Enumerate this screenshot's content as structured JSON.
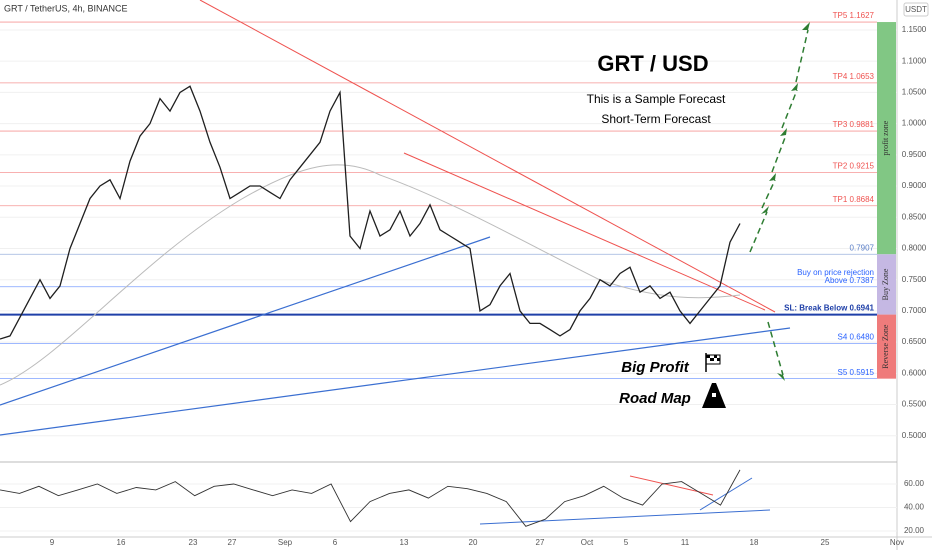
{
  "header": {
    "symbol": "GRT / TetherUS, 4h, BINANCE",
    "currency": "USDT"
  },
  "chart_data": {
    "type": "line",
    "title": "GRT / USD",
    "subtitle": [
      "This is a Sample Forecast",
      "Short-Term Forecast"
    ],
    "annotations": [
      "Big Profit",
      "Road Map"
    ],
    "color": "#1f1f1f",
    "values": [
      0.655,
      0.66,
      0.69,
      0.72,
      0.75,
      0.72,
      0.74,
      0.8,
      0.84,
      0.88,
      0.9,
      0.91,
      0.88,
      0.94,
      0.98,
      1.0,
      1.04,
      1.02,
      1.05,
      1.06,
      1.02,
      0.97,
      0.93,
      0.88,
      0.89,
      0.9,
      0.9,
      0.89,
      0.88,
      0.91,
      0.93,
      0.95,
      0.97,
      1.02,
      1.05,
      0.82,
      0.8,
      0.86,
      0.82,
      0.83,
      0.86,
      0.82,
      0.84,
      0.87,
      0.83,
      0.82,
      0.81,
      0.8,
      0.7,
      0.71,
      0.74,
      0.76,
      0.7,
      0.68,
      0.68,
      0.67,
      0.66,
      0.67,
      0.7,
      0.72,
      0.75,
      0.74,
      0.76,
      0.77,
      0.73,
      0.74,
      0.72,
      0.73,
      0.7,
      0.68,
      0.7,
      0.72,
      0.74,
      0.81,
      0.84
    ],
    "ylim": [
      0.458,
      1.198
    ],
    "yticks": [
      {
        "value": 0.5,
        "label": "0.5000"
      },
      {
        "value": 0.55,
        "label": "0.5500"
      },
      {
        "value": 0.6,
        "label": "0.6000"
      },
      {
        "value": 0.65,
        "label": "0.6500"
      },
      {
        "value": 0.7,
        "label": "0.7000"
      },
      {
        "value": 0.75,
        "label": "0.7500"
      },
      {
        "value": 0.8,
        "label": "0.8000"
      },
      {
        "value": 0.85,
        "label": "0.8500"
      },
      {
        "value": 0.9,
        "label": "0.9000"
      },
      {
        "value": 0.95,
        "label": "0.9500"
      },
      {
        "value": 1.0,
        "label": "1.0000"
      },
      {
        "value": 1.05,
        "label": "1.0500"
      },
      {
        "value": 1.1,
        "label": "1.1000"
      },
      {
        "value": 1.15,
        "label": "1.1500"
      }
    ],
    "levels": [
      {
        "label": "TP5 1.1627",
        "value": 1.1627,
        "color": "#ef5350"
      },
      {
        "label": "TP4 1.0653",
        "value": 1.0653,
        "color": "#ef5350"
      },
      {
        "label": "TP3 0.9881",
        "value": 0.9881,
        "color": "#ef5350"
      },
      {
        "label": "TP2 0.9215",
        "value": 0.9215,
        "color": "#ef5350"
      },
      {
        "label": "TP1 0.8684",
        "value": 0.8684,
        "color": "#ef5350"
      },
      {
        "label": "0.7907",
        "value": 0.7907,
        "color": "#5b7fc7"
      },
      {
        "label": "Above 0.7387",
        "value": 0.7387,
        "color": "#2962ff",
        "note": "Buy on price rejection"
      },
      {
        "label": "SL: Break Below 0.6941",
        "value": 0.6941,
        "color": "#1e3fa8"
      },
      {
        "label": "S4 0.6480",
        "value": 0.648,
        "color": "#2962ff"
      },
      {
        "label": "S5 0.5915",
        "value": 0.5915,
        "color": "#2962ff"
      }
    ],
    "zones": [
      {
        "label": "profit zone",
        "from": 0.7907,
        "to": 1.1627,
        "color": "#81c784"
      },
      {
        "label": "Buy Zone",
        "from": 0.6941,
        "to": 0.7907,
        "color": "#c5b8e3"
      },
      {
        "label": "Reverse Zone",
        "from": 0.5915,
        "to": 0.6941,
        "color": "#ef7b7b"
      }
    ],
    "xtick_labels": [
      "9",
      "16",
      "23",
      "27",
      "Sep",
      "6",
      "13",
      "20",
      "27",
      "Oct",
      "5",
      "11",
      "18",
      "25",
      "Nov"
    ],
    "rsi_values": [
      55,
      52,
      58,
      50,
      55,
      60,
      52,
      57,
      55,
      62,
      50,
      58,
      60,
      55,
      50,
      55,
      52,
      60,
      28,
      45,
      52,
      55,
      48,
      58,
      56,
      52,
      45,
      24,
      30,
      45,
      50,
      58,
      48,
      42,
      60,
      62,
      52,
      42,
      72
    ],
    "rsi_lim": [
      14.9,
      78.7
    ],
    "rsi_ticks": [
      {
        "value": 20,
        "label": "20.00"
      },
      {
        "value": 40,
        "label": "40.00"
      },
      {
        "value": 60,
        "label": "60.00"
      }
    ]
  }
}
